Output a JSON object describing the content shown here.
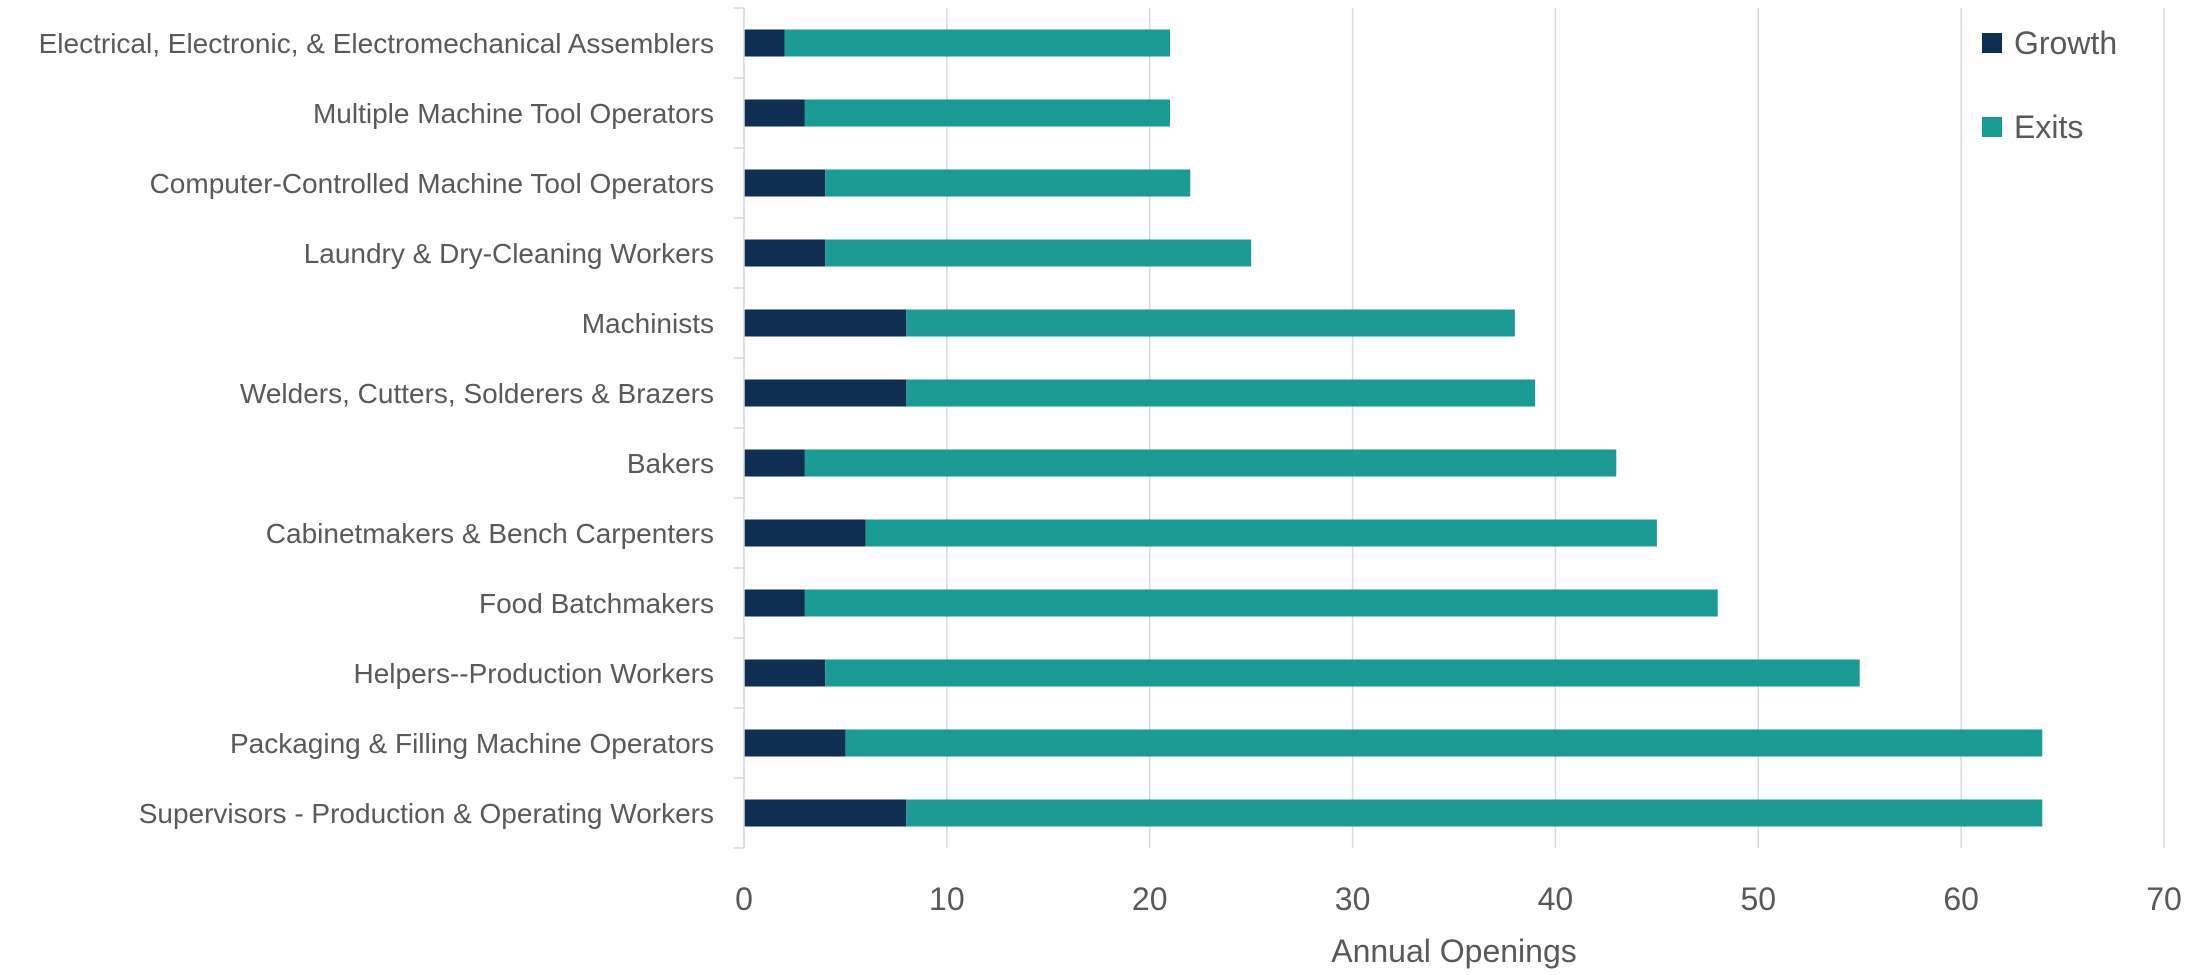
{
  "chart_data": {
    "type": "bar",
    "orientation": "horizontal",
    "stacked": true,
    "categories": [
      "Electrical, Electronic, & Electromechanical Assemblers",
      "Multiple Machine Tool Operators",
      "Computer-Controlled Machine Tool Operators",
      "Laundry & Dry-Cleaning Workers",
      "Machinists",
      "Welders, Cutters, Solderers & Brazers",
      "Bakers",
      "Cabinetmakers & Bench Carpenters",
      "Food Batchmakers",
      "Helpers--Production Workers",
      "Packaging & Filling Machine Operators",
      "Supervisors - Production & Operating Workers"
    ],
    "series": [
      {
        "name": "Growth",
        "color": "#0f2f52",
        "values": [
          2,
          3,
          4,
          4,
          8,
          8,
          3,
          6,
          3,
          4,
          5,
          8
        ]
      },
      {
        "name": "Exits",
        "color": "#1c9a94",
        "values": [
          19,
          18,
          18,
          21,
          30,
          31,
          40,
          39,
          45,
          51,
          59,
          56
        ]
      }
    ],
    "xlabel": "Annual Openings",
    "ylabel": "",
    "xlim": [
      0,
      70
    ],
    "xticks": [
      0,
      10,
      20,
      30,
      40,
      50,
      60,
      70
    ],
    "grid": "vertical",
    "legend_position": "top-right"
  }
}
